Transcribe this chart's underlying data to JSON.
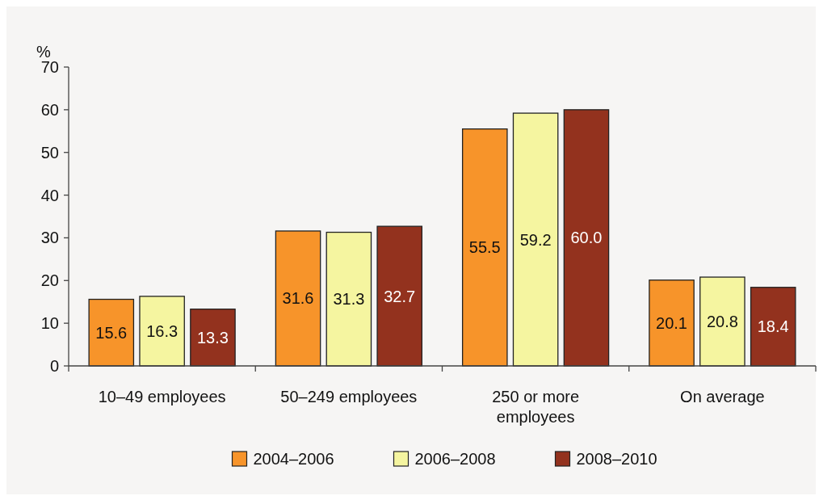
{
  "chart_data": {
    "type": "bar",
    "ylabel": "%",
    "categories": [
      "10–49 employees",
      "50–249 employees",
      "250 or more employees",
      "On average"
    ],
    "series": [
      {
        "name": "2004–2006",
        "color": "#f7942a",
        "values": [
          15.6,
          31.6,
          55.5,
          20.1
        ],
        "value_labels": [
          "15.6",
          "31.6",
          "55.5",
          "20.1"
        ]
      },
      {
        "name": "2006–2008",
        "color": "#f5f5a0",
        "values": [
          16.3,
          31.3,
          59.2,
          20.8
        ],
        "value_labels": [
          "16.3",
          "31.3",
          "59.2",
          "20.8"
        ]
      },
      {
        "name": "2008–2010",
        "color": "#93321e",
        "values": [
          13.3,
          32.7,
          60,
          18.4
        ],
        "value_labels": [
          "13.3",
          "32.7",
          "60.0",
          "18.4"
        ]
      }
    ],
    "ylim": [
      0,
      70
    ],
    "yticks": [
      0,
      10,
      20,
      30,
      40,
      50,
      60,
      70
    ],
    "legend": "bottom"
  }
}
